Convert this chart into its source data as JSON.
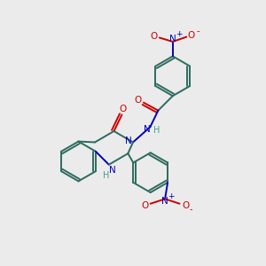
{
  "bg_color": "#ebebeb",
  "bond_color": "#2d6b5e",
  "N_color": "#0000bb",
  "O_color": "#cc0000",
  "H_color": "#4a9a8a",
  "lw": 1.4,
  "fs": 7.5,
  "xlim": [
    0,
    10
  ],
  "ylim": [
    0,
    10
  ]
}
